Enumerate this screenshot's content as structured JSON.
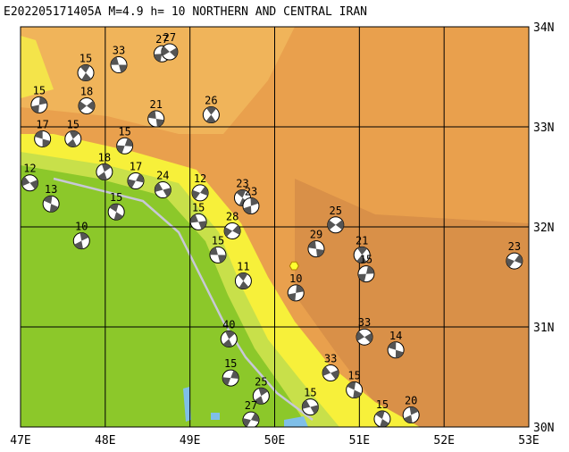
{
  "map": {
    "title": "E202205171405A M=4.9 h= 10 NORTHERN AND CENTRAL IRAN",
    "xlim": [
      47,
      53
    ],
    "ylim": [
      30,
      34
    ],
    "xticks": [
      {
        "value": 47,
        "label": "47E"
      },
      {
        "value": 48,
        "label": "48E"
      },
      {
        "value": 49,
        "label": "49E"
      },
      {
        "value": 50,
        "label": "50E"
      },
      {
        "value": 51,
        "label": "51E"
      },
      {
        "value": 52,
        "label": "52E"
      },
      {
        "value": 53,
        "label": "53E"
      }
    ],
    "yticks": [
      {
        "value": 30,
        "label": "30N"
      },
      {
        "value": 31,
        "label": "31N"
      },
      {
        "value": 32,
        "label": "32N"
      },
      {
        "value": 33,
        "label": "33N"
      },
      {
        "value": 34,
        "label": "34N"
      }
    ],
    "epicenter": {
      "lon": 50.23,
      "lat": 31.61
    },
    "events": [
      {
        "lon": 48.16,
        "lat": 33.62,
        "depth": 33
      },
      {
        "lon": 47.77,
        "lat": 33.54,
        "depth": 15
      },
      {
        "lon": 47.22,
        "lat": 33.22,
        "depth": 15
      },
      {
        "lon": 47.78,
        "lat": 33.21,
        "depth": 18
      },
      {
        "lon": 48.6,
        "lat": 33.08,
        "depth": 21
      },
      {
        "lon": 49.25,
        "lat": 33.12,
        "depth": 26
      },
      {
        "lon": 48.67,
        "lat": 33.73,
        "depth": 27
      },
      {
        "lon": 48.76,
        "lat": 33.75,
        "depth": 27
      },
      {
        "lon": 47.26,
        "lat": 32.88,
        "depth": 17
      },
      {
        "lon": 47.62,
        "lat": 32.88,
        "depth": 15
      },
      {
        "lon": 48.23,
        "lat": 32.81,
        "depth": 15
      },
      {
        "lon": 47.11,
        "lat": 32.44,
        "depth": 12
      },
      {
        "lon": 47.36,
        "lat": 32.23,
        "depth": 13
      },
      {
        "lon": 47.99,
        "lat": 32.55,
        "depth": 18
      },
      {
        "lon": 48.36,
        "lat": 32.46,
        "depth": 17
      },
      {
        "lon": 48.68,
        "lat": 32.37,
        "depth": 24
      },
      {
        "lon": 48.13,
        "lat": 32.15,
        "depth": 15
      },
      {
        "lon": 47.72,
        "lat": 31.86,
        "depth": 10
      },
      {
        "lon": 49.12,
        "lat": 32.34,
        "depth": 12
      },
      {
        "lon": 49.1,
        "lat": 32.05,
        "depth": 15
      },
      {
        "lon": 49.62,
        "lat": 32.29,
        "depth": 23
      },
      {
        "lon": 49.72,
        "lat": 32.21,
        "depth": 23
      },
      {
        "lon": 49.5,
        "lat": 31.96,
        "depth": 28
      },
      {
        "lon": 49.33,
        "lat": 31.72,
        "depth": 15
      },
      {
        "lon": 49.63,
        "lat": 31.46,
        "depth": 11
      },
      {
        "lon": 50.25,
        "lat": 31.34,
        "depth": 10
      },
      {
        "lon": 50.72,
        "lat": 32.02,
        "depth": 25
      },
      {
        "lon": 50.49,
        "lat": 31.78,
        "depth": 29
      },
      {
        "lon": 51.03,
        "lat": 31.72,
        "depth": 21
      },
      {
        "lon": 51.08,
        "lat": 31.53,
        "depth": 15
      },
      {
        "lon": 51.06,
        "lat": 30.9,
        "depth": 33
      },
      {
        "lon": 51.43,
        "lat": 30.77,
        "depth": 14
      },
      {
        "lon": 49.46,
        "lat": 30.88,
        "depth": 40
      },
      {
        "lon": 49.48,
        "lat": 30.49,
        "depth": 15
      },
      {
        "lon": 50.66,
        "lat": 30.54,
        "depth": 33
      },
      {
        "lon": 50.94,
        "lat": 30.37,
        "depth": 15
      },
      {
        "lon": 49.84,
        "lat": 30.31,
        "depth": 25
      },
      {
        "lon": 49.72,
        "lat": 30.07,
        "depth": 27
      },
      {
        "lon": 50.42,
        "lat": 30.2,
        "depth": 15
      },
      {
        "lon": 51.27,
        "lat": 30.08,
        "depth": 15
      },
      {
        "lon": 51.61,
        "lat": 30.12,
        "depth": 20
      },
      {
        "lon": 52.83,
        "lat": 31.66,
        "depth": 23
      }
    ]
  }
}
